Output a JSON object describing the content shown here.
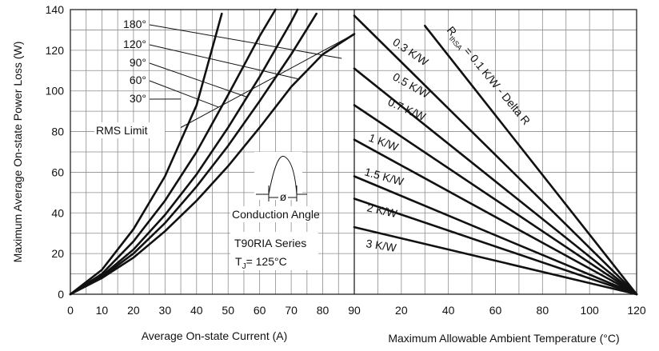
{
  "chart_data": [
    {
      "type": "line",
      "xlabel": "Average On-state Current (A)",
      "ylabel": "Maximum Average On-state Power Loss (W)",
      "xlim": [
        0,
        90
      ],
      "ylim": [
        0,
        140
      ],
      "x_ticks": [
        0,
        10,
        20,
        30,
        40,
        50,
        60,
        70,
        80,
        90
      ],
      "y_ticks": [
        0,
        20,
        40,
        60,
        80,
        100,
        120,
        140
      ],
      "grid": true,
      "series": [
        {
          "name": "30°",
          "points": [
            [
              0,
              0
            ],
            [
              10,
              12
            ],
            [
              20,
              32
            ],
            [
              30,
              58
            ],
            [
              40,
              93
            ],
            [
              48,
              138
            ]
          ]
        },
        {
          "name": "60°",
          "points": [
            [
              0,
              0
            ],
            [
              10,
              10
            ],
            [
              20,
              26
            ],
            [
              30,
              46
            ],
            [
              40,
              70
            ],
            [
              50,
              98
            ],
            [
              60,
              127
            ],
            [
              65,
              140
            ]
          ]
        },
        {
          "name": "90°",
          "points": [
            [
              0,
              0
            ],
            [
              10,
              9
            ],
            [
              20,
              22
            ],
            [
              30,
              39
            ],
            [
              40,
              59
            ],
            [
              50,
              82
            ],
            [
              60,
              107
            ],
            [
              70,
              134
            ],
            [
              72,
              140
            ]
          ]
        },
        {
          "name": "120°",
          "points": [
            [
              0,
              0
            ],
            [
              10,
              8.5
            ],
            [
              20,
              20
            ],
            [
              30,
              35
            ],
            [
              40,
              53
            ],
            [
              50,
              73
            ],
            [
              60,
              95
            ],
            [
              70,
              118
            ],
            [
              78,
              138
            ]
          ]
        },
        {
          "name": "180°",
          "points": [
            [
              0,
              0
            ],
            [
              10,
              8
            ],
            [
              20,
              18
            ],
            [
              30,
              31
            ],
            [
              40,
              46
            ],
            [
              50,
              63
            ],
            [
              60,
              82
            ],
            [
              70,
              102
            ],
            [
              80,
              118
            ],
            [
              90,
              128
            ]
          ]
        },
        {
          "name": "RMS Limit",
          "points": [
            [
              35,
              82
            ],
            [
              90,
              128
            ]
          ]
        }
      ],
      "annotations": [
        "180°",
        "120°",
        "90°",
        "60°",
        "30°",
        "RMS Limit",
        "Conduction Angle",
        "T90RIA Series"
      ],
      "tj_label": {
        "prefix": "T",
        "sub": "J",
        "suffix": "= 125°C"
      },
      "conduction_symbol": "ø"
    },
    {
      "type": "line",
      "xlabel": "Maximum Allowable Ambient Temperature (°C)",
      "xlim": [
        0,
        120
      ],
      "x_ticks": [
        0,
        20,
        40,
        60,
        80,
        100,
        120
      ],
      "x_tick_labels": [
        "90",
        "20",
        "40",
        "60",
        "80",
        "100",
        "120"
      ],
      "grid": true,
      "series": [
        {
          "name": "R thSA = 0.1 K/W - Delta R",
          "points": [
            [
              30,
              132
            ],
            [
              120,
              0
            ]
          ]
        },
        {
          "name": "0.3 K/W",
          "points": [
            [
              0,
              137
            ],
            [
              120,
              0
            ]
          ]
        },
        {
          "name": "0.5 K/W",
          "points": [
            [
              0,
              111
            ],
            [
              120,
              0
            ]
          ]
        },
        {
          "name": "0.7 K/W",
          "points": [
            [
              0,
              93
            ],
            [
              120,
              0
            ]
          ]
        },
        {
          "name": "1 K/W",
          "points": [
            [
              0,
              76
            ],
            [
              120,
              0
            ]
          ]
        },
        {
          "name": "1.5 K/W",
          "points": [
            [
              0,
              58
            ],
            [
              120,
              0
            ]
          ]
        },
        {
          "name": "2 K/W",
          "points": [
            [
              0,
              47
            ],
            [
              120,
              0
            ]
          ]
        },
        {
          "name": "3 K/W",
          "points": [
            [
              0,
              33
            ],
            [
              120,
              0
            ]
          ]
        }
      ],
      "rthsa_label": {
        "prefix": "R",
        "sub": "thSA",
        "suffix": " = 0.1 K/W - Delta R"
      },
      "resistance_labels": [
        "0.3 K/W",
        "0.5 K/W",
        "0.7 K/W",
        "1 K/W",
        "1.5 K/W",
        "2 K/W",
        "3 K/W"
      ]
    }
  ]
}
